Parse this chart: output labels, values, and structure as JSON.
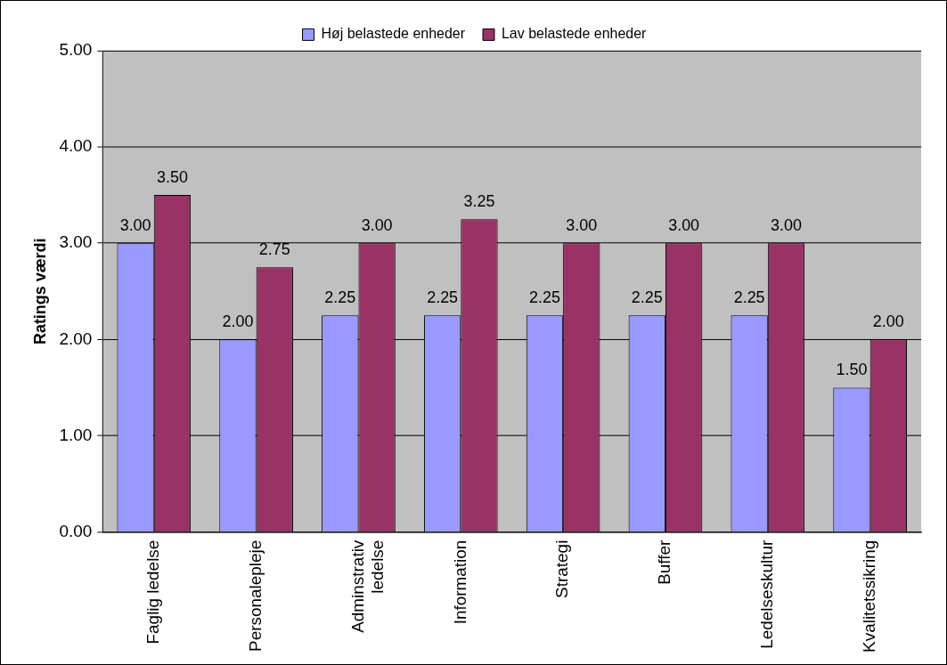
{
  "chart_data": {
    "type": "bar",
    "ylabel": "Ratings værdi",
    "categories": [
      "Faglig ledelse",
      "Personalepleje",
      "Adminstrativ ledelse",
      "Information",
      "Strategi",
      "Buffer",
      "Ledelseskultur",
      "Kvalitetssikring"
    ],
    "series": [
      {
        "name": "Høj belastede enheder",
        "color": "#9999ff",
        "values": [
          3,
          2,
          2.25,
          2.25,
          2.25,
          2.25,
          2.25,
          1.5
        ],
        "value_labels": [
          "3.00",
          "2.00",
          "2.25",
          "2.25",
          "2.25",
          "2.25",
          "2.25",
          "1.50"
        ]
      },
      {
        "name": "Lav belastede enheder",
        "color": "#993366",
        "values": [
          3.5,
          2.75,
          3,
          3.25,
          3,
          3,
          3,
          2
        ],
        "value_labels": [
          "3.50",
          "2.75",
          "3.00",
          "3.25",
          "3.00",
          "3.00",
          "3.00",
          "2.00"
        ]
      }
    ],
    "ylim": [
      0,
      5
    ],
    "yticks": [
      {
        "value": 0,
        "label": "0.00"
      },
      {
        "value": 1,
        "label": "1.00"
      },
      {
        "value": 2,
        "label": "2.00"
      },
      {
        "value": 3,
        "label": "3.00"
      },
      {
        "value": 4,
        "label": "4.00"
      },
      {
        "value": 5,
        "label": "5.00"
      }
    ],
    "grid": "y",
    "legend": "top"
  }
}
